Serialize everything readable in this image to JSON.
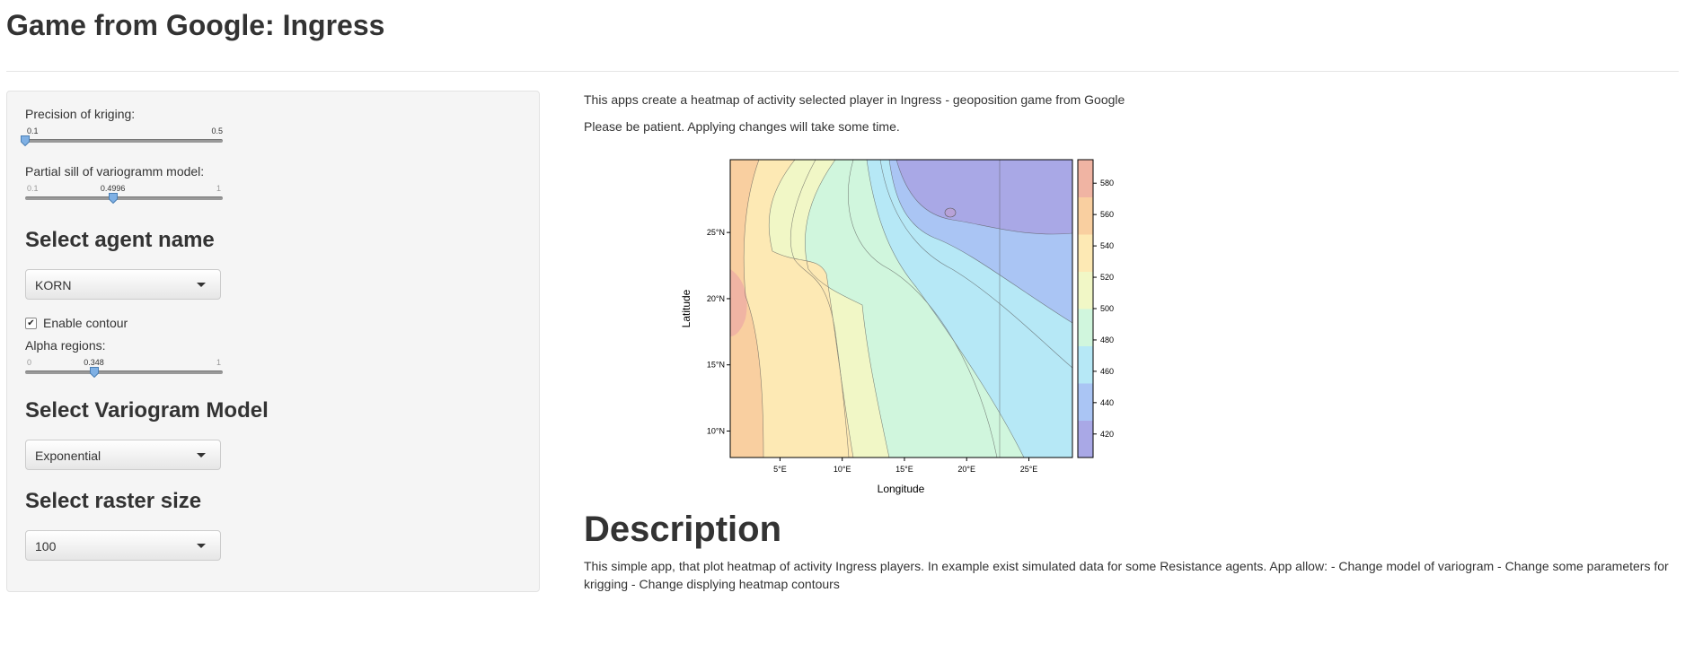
{
  "title": "Game from Google: Ingress",
  "sidebar": {
    "kriging": {
      "label": "Precision of kriging:",
      "min": "0.1",
      "max": "0.5",
      "value": 0.1
    },
    "sill": {
      "label": "Partial sill of variogramm model:",
      "min": "0.1",
      "max": "1",
      "value": 0.4996,
      "value_text": "0.4996"
    },
    "agent": {
      "heading": "Select agent name",
      "selected": "KORN"
    },
    "contour": {
      "label": "Enable contour",
      "checked": true
    },
    "alpha": {
      "label": "Alpha regions:",
      "min": "0",
      "max": "1",
      "value": 0.348,
      "value_text": "0.348"
    },
    "variogram": {
      "heading": "Select Variogram Model",
      "selected": "Exponential"
    },
    "raster": {
      "heading": "Select raster size",
      "selected": "100"
    }
  },
  "main": {
    "intro1": "This apps create a heatmap of activity selected player in Ingress - geoposition game from Google",
    "intro2": "Please be patient. Applying changes will take some time.",
    "desc_heading": "Description",
    "desc_body": "This simple app, that plot heatmap of activity Ingress players. In example exist simulated data for some Resistance agents. App allow: - Change model of variogram - Change some parameters for krigging - Change displying heatmap contours"
  },
  "chart_data": {
    "type": "heatmap",
    "xlabel": "Longitude",
    "ylabel": "Latitude",
    "xlim": [
      1,
      28.5
    ],
    "ylim": [
      8,
      30.5
    ],
    "x_ticks": [
      5,
      10,
      15,
      20,
      25
    ],
    "x_tick_labels": [
      "5°E",
      "10°E",
      "15°E",
      "20°E",
      "25°E"
    ],
    "y_ticks": [
      10,
      15,
      20,
      25
    ],
    "y_tick_labels": [
      "10°N",
      "15°N",
      "20°N",
      "25°N"
    ],
    "colorbar": {
      "min": 405,
      "max": 595,
      "ticks": [
        420,
        440,
        460,
        480,
        500,
        520,
        540,
        560,
        580
      ],
      "palette_low_to_high": [
        "#a9a8e6",
        "#aac5f4",
        "#b6e8f6",
        "#d0f6dd",
        "#f1f7c6",
        "#fde9b4",
        "#f9cfa0",
        "#f0b4a3"
      ]
    },
    "contours": "enabled"
  },
  "colors": {
    "sidebar_bg": "#f5f5f5",
    "slider_handle": "#7fb0e4"
  }
}
